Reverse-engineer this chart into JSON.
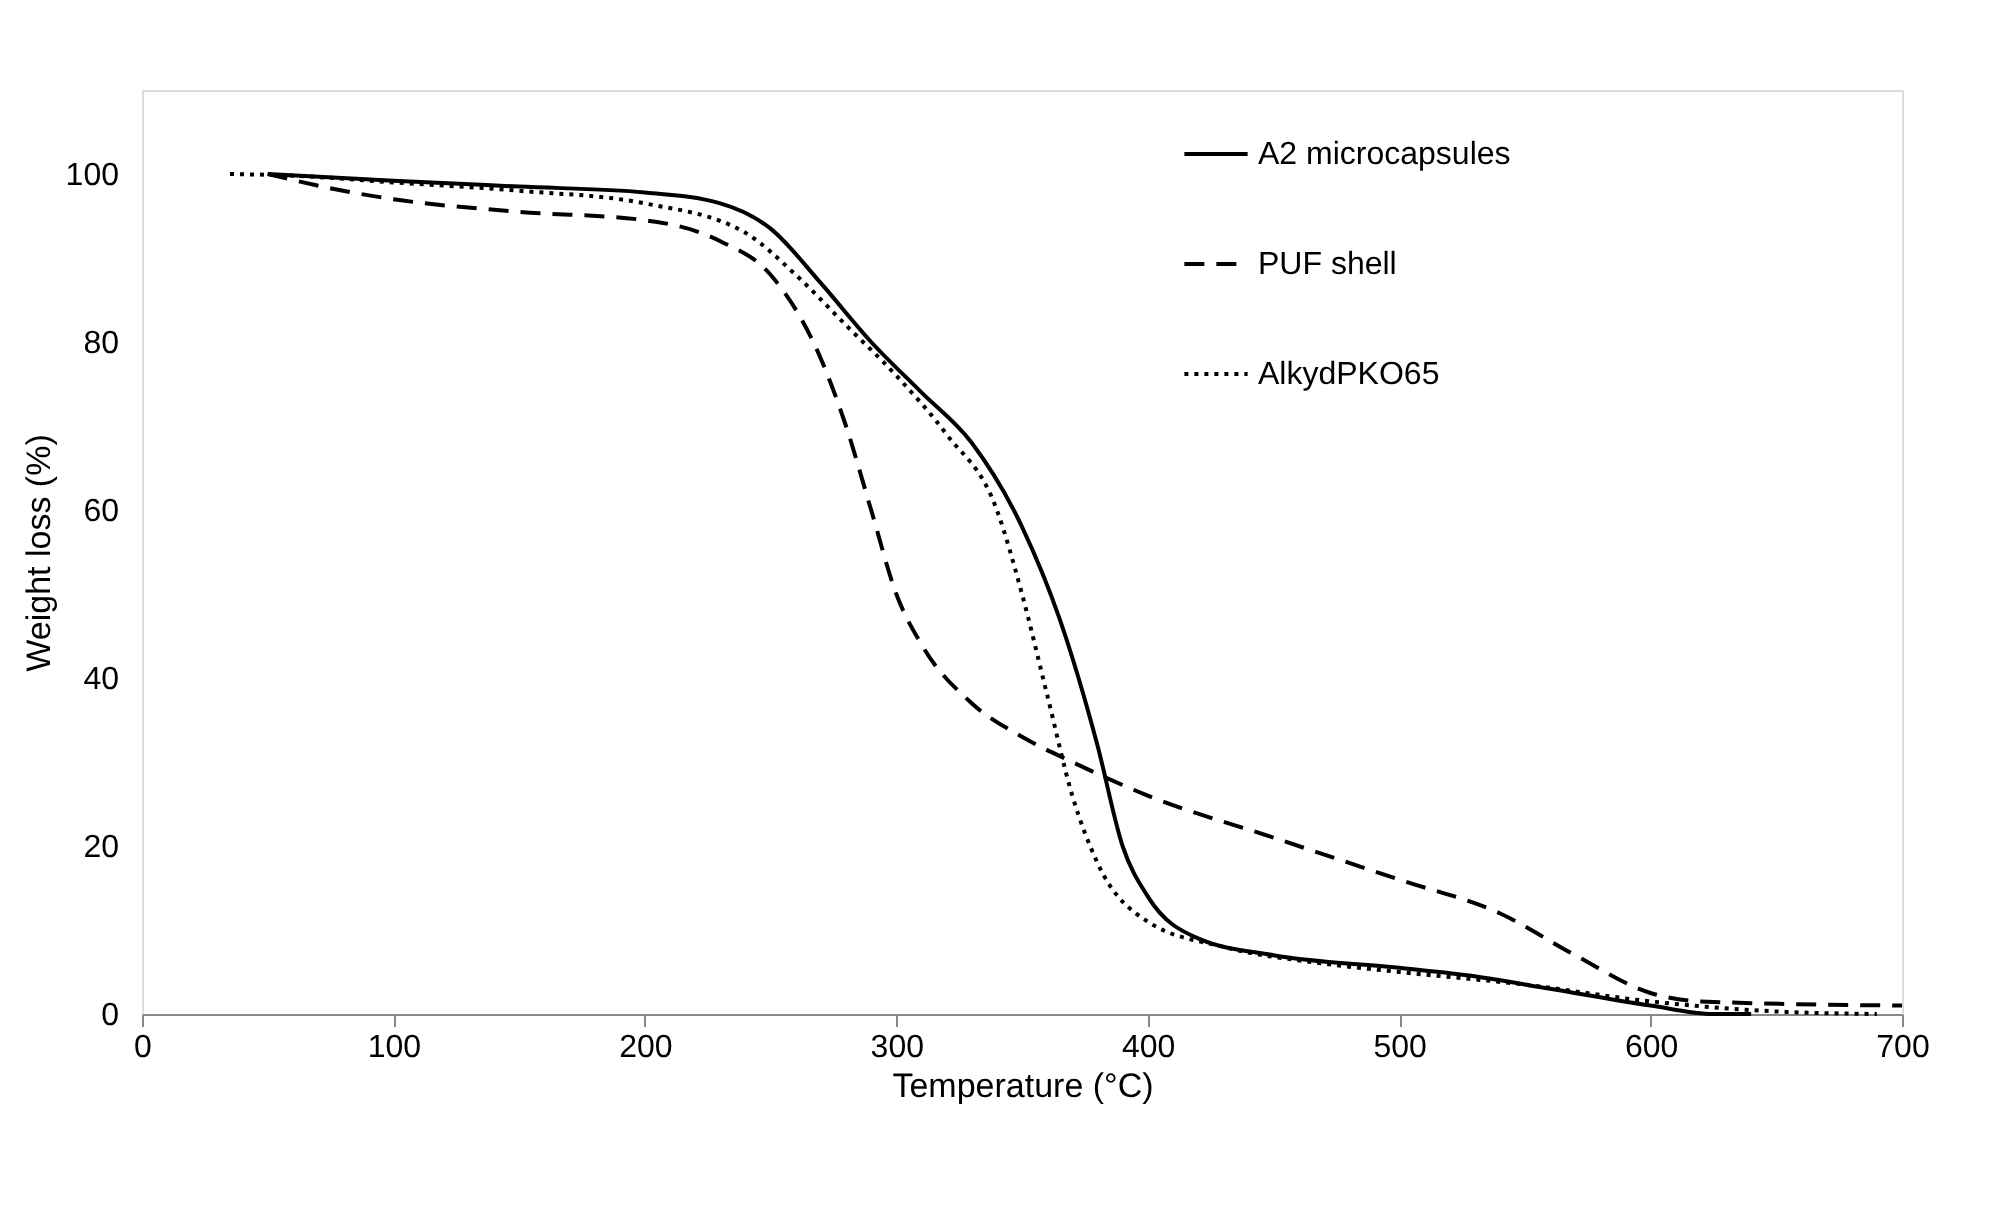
{
  "chart_data": {
    "type": "line",
    "xlabel": "Temperature (°C)",
    "ylabel": "Weight loss (%)",
    "xlim": [
      0,
      700
    ],
    "xticks": [
      0,
      100,
      200,
      300,
      400,
      500,
      600,
      700
    ],
    "ylim": [
      0,
      110
    ],
    "yticks": [
      0,
      20,
      40,
      60,
      80,
      100
    ],
    "grid": false,
    "legend": "top right",
    "marker": "none",
    "series": [
      {
        "name": "A2 microcapsules",
        "color": "#000000",
        "line_style": "solid",
        "x": [
          50,
          100,
          150,
          200,
          230,
          250,
          270,
          290,
          310,
          330,
          350,
          365,
          380,
          390,
          400,
          420,
          450,
          500,
          530,
          560,
          600,
          625,
          640
        ],
        "values": [
          100,
          99.2,
          98.5,
          97.8,
          96.5,
          93.5,
          87,
          80,
          74,
          68,
          58,
          47,
          32,
          20,
          14,
          9,
          7,
          5.5,
          4.5,
          3,
          1,
          0,
          0
        ]
      },
      {
        "name": "PUF shell",
        "color": "#000000",
        "line_style": "dashed",
        "x": [
          50,
          80,
          100,
          150,
          200,
          230,
          250,
          270,
          280,
          290,
          300,
          310,
          330,
          350,
          370,
          400,
          450,
          500,
          540,
          570,
          600,
          620,
          700
        ],
        "values": [
          100,
          98,
          97,
          95.5,
          94.5,
          92,
          88,
          78,
          70,
          60,
          50,
          44,
          37,
          33,
          30,
          26,
          21,
          16,
          12,
          7,
          2.5,
          1.5,
          1
        ]
      },
      {
        "name": "AlkydPKO65",
        "color": "#000000",
        "line_style": "dotted",
        "x": [
          35,
          60,
          100,
          150,
          200,
          240,
          260,
          280,
          300,
          320,
          340,
          350,
          360,
          370,
          380,
          400,
          430,
          470,
          500,
          550,
          600,
          650,
          690
        ],
        "values": [
          100,
          99.8,
          99,
          98,
          96.5,
          93,
          88,
          82,
          76,
          69,
          60,
          50,
          38,
          26,
          18,
          11,
          8,
          6,
          5,
          3.5,
          1.5,
          0.3,
          0
        ]
      }
    ]
  }
}
